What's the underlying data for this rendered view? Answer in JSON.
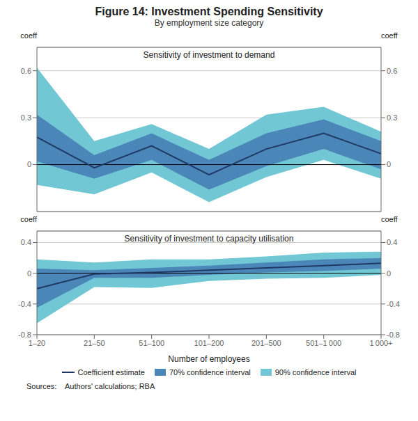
{
  "title": "Figure 14: Investment Spending Sensitivity",
  "subtitle": "By employment size category",
  "annotations": [
    "Sources:    Authors' calculations; RBA"
  ],
  "chart_data": [
    {
      "type": "line",
      "title": "Sensitivity of investment to demand",
      "ylabel": "coeff",
      "y2label": "coeff",
      "categories": [
        "1–20",
        "21–50",
        "51–100",
        "101–200",
        "201–500",
        "501–1 000",
        "1 000+"
      ],
      "ylim": [
        -0.3,
        0.75
      ],
      "yticks": [
        0,
        0.3,
        0.6
      ],
      "y2lim": [
        -0.3,
        0.75
      ],
      "y2ticks": [
        0,
        0.3,
        0.6
      ],
      "grid": true,
      "tick_labels": "y",
      "series": [
        {
          "name": "Coefficient estimate",
          "type": "line",
          "color": "#1f3864",
          "values": [
            0.175,
            -0.02,
            0.12,
            -0.065,
            0.1,
            0.2,
            0.07
          ]
        },
        {
          "name": "70% confidence interval",
          "type": "band",
          "color": "#4a86b8",
          "lower": [
            0.02,
            -0.09,
            0.03,
            -0.16,
            -0.01,
            0.1,
            -0.03
          ],
          "upper": [
            0.32,
            0.06,
            0.2,
            0.03,
            0.2,
            0.29,
            0.15
          ]
        },
        {
          "name": "90% confidence interval",
          "type": "band",
          "color": "#72c7d4",
          "lower": [
            -0.13,
            -0.19,
            -0.05,
            -0.24,
            -0.08,
            0.03,
            -0.09
          ],
          "upper": [
            0.62,
            0.15,
            0.26,
            0.1,
            0.32,
            0.37,
            0.21
          ]
        }
      ]
    },
    {
      "type": "line",
      "title": "Sensitivity of investment to capacity utilisation",
      "ylabel": "coeff",
      "y2label": "coeff",
      "xlabel": "Number of employees",
      "legend": "bottom",
      "categories": [
        "1–20",
        "21–50",
        "51–100",
        "101–200",
        "201–500",
        "501–1 000",
        "1 000+"
      ],
      "ylim": [
        -0.8,
        0.55
      ],
      "yticks": [
        -0.8,
        -0.4,
        0,
        0.4
      ],
      "y2lim": [
        -0.8,
        0.55
      ],
      "y2ticks": [
        -0.8,
        -0.4,
        0,
        0.4
      ],
      "grid": true,
      "series": [
        {
          "name": "Coefficient estimate",
          "type": "line",
          "color": "#1f3864",
          "values": [
            -0.2,
            -0.01,
            0.01,
            0.04,
            0.07,
            0.1,
            0.13
          ]
        },
        {
          "name": "70% confidence interval",
          "type": "band",
          "color": "#4a86b8",
          "lower": [
            -0.45,
            -0.06,
            -0.06,
            -0.02,
            0.01,
            0.03,
            0.06
          ],
          "upper": [
            0.06,
            0.04,
            0.07,
            0.1,
            0.14,
            0.18,
            0.2
          ]
        },
        {
          "name": "90% confidence interval",
          "type": "band",
          "color": "#72c7d4",
          "lower": [
            -0.65,
            -0.18,
            -0.19,
            -0.1,
            -0.07,
            -0.06,
            -0.02
          ],
          "upper": [
            0.18,
            0.14,
            0.18,
            0.18,
            0.22,
            0.27,
            0.28
          ]
        }
      ]
    }
  ]
}
